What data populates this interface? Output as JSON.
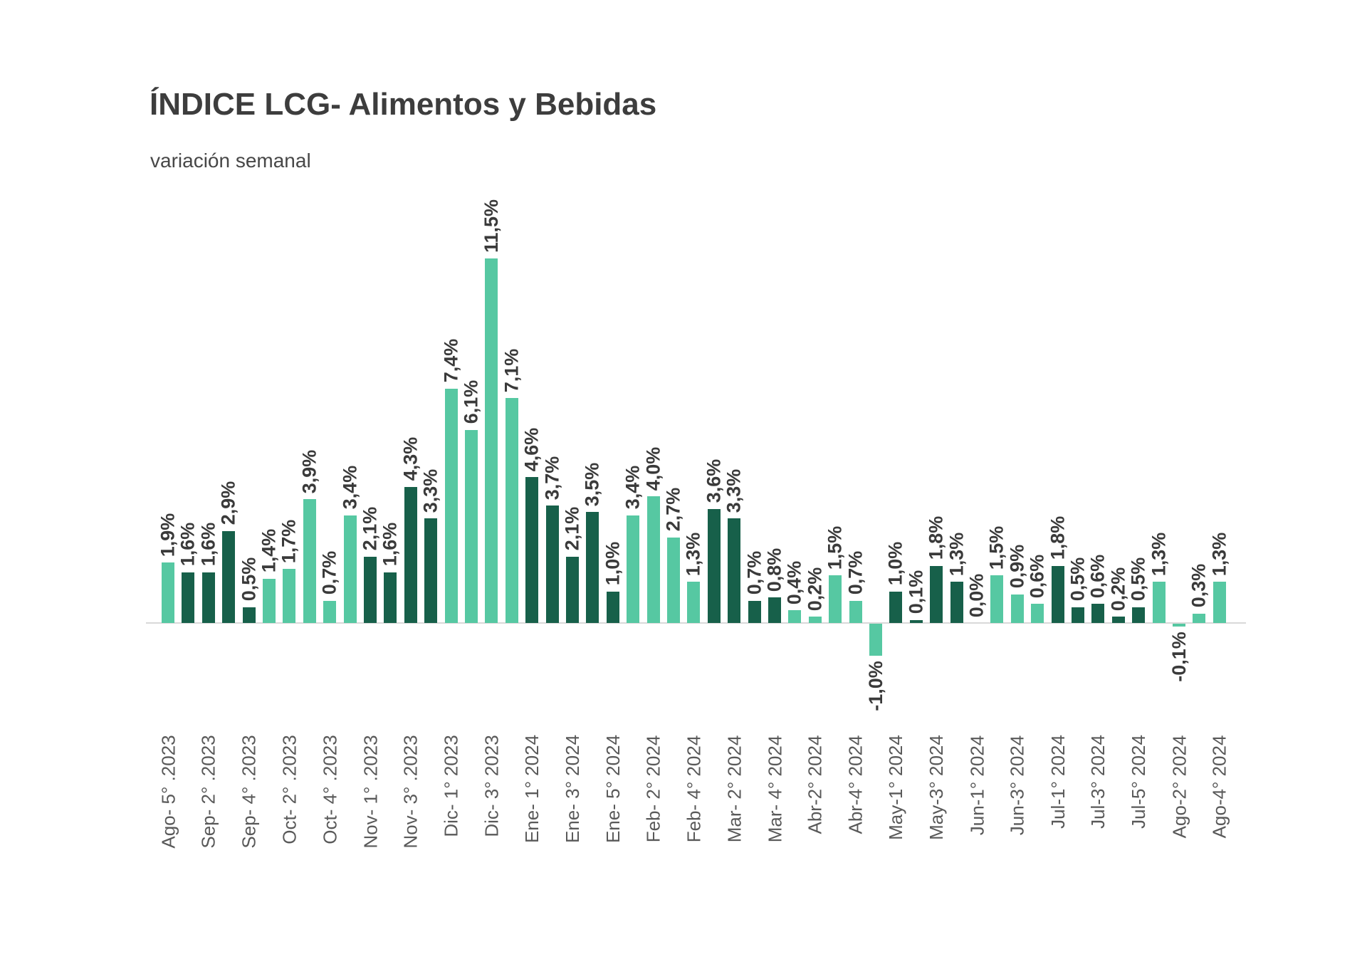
{
  "header": {
    "title": "ÍNDICE LCG- Alimentos y Bebidas",
    "subtitle": "variación semanal"
  },
  "chart_data": {
    "type": "bar",
    "title": "ÍNDICE LCG- Alimentos y Bebidas",
    "subtitle": "variación semanal",
    "xlabel": "",
    "ylabel": "",
    "unit": "%",
    "decimal_separator": ",",
    "grid": false,
    "legend": false,
    "ylim_implied": [
      -1.0,
      11.5
    ],
    "axis_color": "#d9d9d9",
    "value_label_color": "#3a3a3a",
    "category_label_color": "#595959",
    "colors": {
      "light": "#56c8a2",
      "dark": "#17604a"
    },
    "color_note": "bars alternate light/dark by month group",
    "bars": [
      {
        "category": "Ago- 5° .2023",
        "value": 1.9,
        "label": "1,9%",
        "shade": "light"
      },
      {
        "category": "",
        "value": 1.6,
        "label": "1,6%",
        "shade": "dark"
      },
      {
        "category": "Sep- 2° .2023",
        "value": 1.6,
        "label": "1,6%",
        "shade": "dark"
      },
      {
        "category": "",
        "value": 2.9,
        "label": "2,9%",
        "shade": "dark"
      },
      {
        "category": "Sep- 4° .2023",
        "value": 0.5,
        "label": "0,5%",
        "shade": "dark"
      },
      {
        "category": "",
        "value": 1.4,
        "label": "1,4%",
        "shade": "light"
      },
      {
        "category": "Oct- 2° .2023",
        "value": 1.7,
        "label": "1,7%",
        "shade": "light"
      },
      {
        "category": "",
        "value": 3.9,
        "label": "3,9%",
        "shade": "light"
      },
      {
        "category": "Oct- 4° .2023",
        "value": 0.7,
        "label": "0,7%",
        "shade": "light"
      },
      {
        "category": "",
        "value": 3.4,
        "label": "3,4%",
        "shade": "light"
      },
      {
        "category": "Nov- 1° .2023",
        "value": 2.1,
        "label": "2,1%",
        "shade": "dark"
      },
      {
        "category": "",
        "value": 1.6,
        "label": "1,6%",
        "shade": "dark"
      },
      {
        "category": "Nov- 3° .2023",
        "value": 4.3,
        "label": "4,3%",
        "shade": "dark"
      },
      {
        "category": "",
        "value": 3.3,
        "label": "3,3%",
        "shade": "dark"
      },
      {
        "category": "Dic- 1° 2023",
        "value": 7.4,
        "label": "7,4%",
        "shade": "light"
      },
      {
        "category": "",
        "value": 6.1,
        "label": "6,1%",
        "shade": "light"
      },
      {
        "category": "Dic- 3° 2023",
        "value": 11.5,
        "label": "11,5%",
        "shade": "light"
      },
      {
        "category": "",
        "value": 7.1,
        "label": "7,1%",
        "shade": "light"
      },
      {
        "category": "Ene- 1° 2024",
        "value": 4.6,
        "label": "4,6%",
        "shade": "dark"
      },
      {
        "category": "",
        "value": 3.7,
        "label": "3,7%",
        "shade": "dark"
      },
      {
        "category": "Ene- 3° 2024",
        "value": 2.1,
        "label": "2,1%",
        "shade": "dark"
      },
      {
        "category": "",
        "value": 3.5,
        "label": "3,5%",
        "shade": "dark"
      },
      {
        "category": "Ene- 5° 2024",
        "value": 1.0,
        "label": "1,0%",
        "shade": "dark"
      },
      {
        "category": "",
        "value": 3.4,
        "label": "3,4%",
        "shade": "light"
      },
      {
        "category": "Feb- 2° 2024",
        "value": 4.0,
        "label": "4,0%",
        "shade": "light"
      },
      {
        "category": "",
        "value": 2.7,
        "label": "2,7%",
        "shade": "light"
      },
      {
        "category": "Feb- 4° 2024",
        "value": 1.3,
        "label": "1,3%",
        "shade": "light"
      },
      {
        "category": "",
        "value": 3.6,
        "label": "3,6%",
        "shade": "dark"
      },
      {
        "category": "Mar- 2° 2024",
        "value": 3.3,
        "label": "3,3%",
        "shade": "dark"
      },
      {
        "category": "",
        "value": 0.7,
        "label": "0,7%",
        "shade": "dark"
      },
      {
        "category": "Mar- 4° 2024",
        "value": 0.8,
        "label": "0,8%",
        "shade": "dark"
      },
      {
        "category": "",
        "value": 0.4,
        "label": "0,4%",
        "shade": "light"
      },
      {
        "category": "Abr-2° 2024",
        "value": 0.2,
        "label": "0,2%",
        "shade": "light"
      },
      {
        "category": "",
        "value": 1.5,
        "label": "1,5%",
        "shade": "light"
      },
      {
        "category": "Abr-4° 2024",
        "value": 0.7,
        "label": "0,7%",
        "shade": "light"
      },
      {
        "category": "",
        "value": -1.0,
        "label": "-1,0%",
        "shade": "light"
      },
      {
        "category": "May-1° 2024",
        "value": 1.0,
        "label": "1,0%",
        "shade": "dark"
      },
      {
        "category": "",
        "value": 0.1,
        "label": "0,1%",
        "shade": "dark"
      },
      {
        "category": "May-3° 2024",
        "value": 1.8,
        "label": "1,8%",
        "shade": "dark"
      },
      {
        "category": "",
        "value": 1.3,
        "label": "1,3%",
        "shade": "dark"
      },
      {
        "category": "Jun-1° 2024",
        "value": 0.0,
        "label": "0,0%",
        "shade": "light"
      },
      {
        "category": "",
        "value": 1.5,
        "label": "1,5%",
        "shade": "light"
      },
      {
        "category": "Jun-3° 2024",
        "value": 0.9,
        "label": "0,9%",
        "shade": "light"
      },
      {
        "category": "",
        "value": 0.6,
        "label": "0,6%",
        "shade": "light"
      },
      {
        "category": "Jul-1° 2024",
        "value": 1.8,
        "label": "1,8%",
        "shade": "dark"
      },
      {
        "category": "",
        "value": 0.5,
        "label": "0,5%",
        "shade": "dark"
      },
      {
        "category": "Jul-3° 2024",
        "value": 0.6,
        "label": "0,6%",
        "shade": "dark"
      },
      {
        "category": "",
        "value": 0.2,
        "label": "0,2%",
        "shade": "dark"
      },
      {
        "category": "Jul-5° 2024",
        "value": 0.5,
        "label": "0,5%",
        "shade": "dark"
      },
      {
        "category": "",
        "value": 1.3,
        "label": "1,3%",
        "shade": "light"
      },
      {
        "category": "Ago-2° 2024",
        "value": -0.1,
        "label": "-0,1%",
        "shade": "light"
      },
      {
        "category": "",
        "value": 0.3,
        "label": "0,3%",
        "shade": "light"
      },
      {
        "category": "Ago-4° 2024",
        "value": 1.3,
        "label": "1,3%",
        "shade": "light"
      }
    ]
  }
}
